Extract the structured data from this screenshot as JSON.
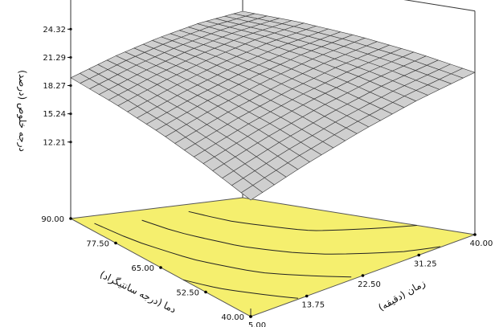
{
  "chart_data": {
    "type": "surface3d",
    "z_axis": {
      "label": "درجه خلوص (درصد)",
      "ticks": [
        "24.32",
        "21.29",
        "18.27",
        "15.24",
        "12.21"
      ]
    },
    "x_axis": {
      "label": "زمان (دقیقه)",
      "range": [
        5,
        40
      ],
      "ticks": [
        "40.00",
        "31.25",
        "22.50",
        "13.75",
        "5.00"
      ]
    },
    "y_axis": {
      "label": "دما (درجه سانتیگراد)",
      "range": [
        40,
        90
      ],
      "ticks": [
        "90.00",
        "77.50",
        "65.00",
        "52.50",
        "40.00"
      ]
    },
    "surface": {
      "t": [
        5,
        13.75,
        22.5,
        31.25,
        40
      ],
      "T": [
        40,
        52.5,
        65,
        77.5,
        90
      ],
      "z": [
        [
          16.5,
          18.2,
          19.6,
          20.7,
          21.4
        ],
        [
          17.6,
          19.3,
          20.7,
          21.8,
          22.5
        ],
        [
          18.4,
          20.1,
          21.5,
          22.6,
          23.3
        ],
        [
          18.9,
          20.6,
          22.0,
          23.1,
          23.8
        ],
        [
          19.1,
          20.8,
          22.2,
          23.3,
          24.0
        ]
      ]
    },
    "contour_floor": true,
    "colors": {
      "surface": "#cfcfcf",
      "mesh": "#3a3a3a",
      "floor": "#f5ef6e",
      "box": "#333333",
      "contour": "#222222"
    }
  }
}
